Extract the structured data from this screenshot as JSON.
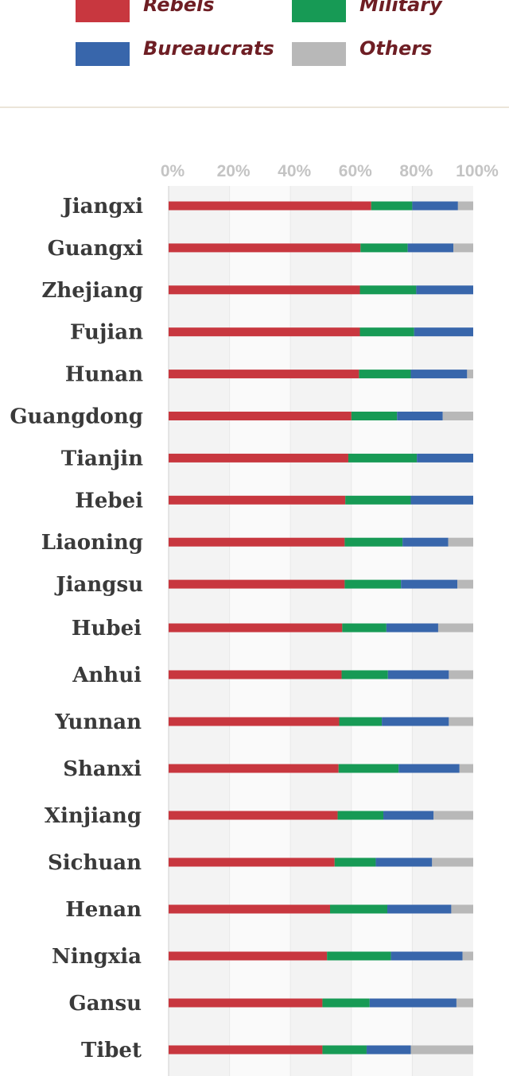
{
  "legend": [
    {
      "label": "Rebels",
      "color": "#c8373f"
    },
    {
      "label": "Military",
      "color": "#179a55"
    },
    {
      "label": "Bureaucrats",
      "color": "#3866ab"
    },
    {
      "label": "Others",
      "color": "#b8b8b8"
    }
  ],
  "chart_data": {
    "type": "bar",
    "orientation": "horizontal",
    "stacked": true,
    "legend_position": "top",
    "grid": true,
    "xlim": [
      0,
      100
    ],
    "x_ticks": [
      "0%",
      "20%",
      "40%",
      "60%",
      "80%",
      "100%"
    ],
    "categories": [
      "Jiangxi",
      "Guangxi",
      "Zhejiang",
      "Fujian",
      "Hunan",
      "Guangdong",
      "Tianjin",
      "Hebei",
      "Liaoning",
      "Jiangsu",
      "Hubei",
      "Anhui",
      "Yunnan",
      "Shanxi",
      "Xinjiang",
      "Sichuan",
      "Henan",
      "Ningxia",
      "Gansu",
      "Tibet"
    ],
    "series": [
      {
        "name": "Rebels",
        "color": "#c8373f",
        "values": [
          66.5,
          63,
          62.8,
          62.8,
          62.5,
          60,
          59,
          58,
          57.8,
          57.8,
          57,
          56.8,
          56,
          55.8,
          55.5,
          54.5,
          53,
          52,
          50.5,
          50.5
        ]
      },
      {
        "name": "Military",
        "color": "#179a55",
        "values": [
          13.5,
          15.5,
          18.5,
          17.8,
          17,
          15,
          22.5,
          21.5,
          19,
          18.5,
          14.5,
          15.2,
          14,
          19.7,
          15,
          13.5,
          18.8,
          21,
          15.5,
          14.5
        ]
      },
      {
        "name": "Bureaucrats",
        "color": "#3866ab",
        "values": [
          15,
          15,
          18.7,
          19.4,
          18.5,
          15,
          18.5,
          20.5,
          15,
          18.5,
          17,
          20,
          22,
          20,
          16.5,
          18.5,
          21,
          23.5,
          28.5,
          14.5
        ]
      },
      {
        "name": "Others",
        "color": "#b8b8b8",
        "values": [
          5,
          6.5,
          0,
          0,
          2,
          10,
          0,
          0,
          8.2,
          5.2,
          11.5,
          8,
          8,
          4.5,
          13,
          13.5,
          7.2,
          3.5,
          5.5,
          20.5
        ]
      }
    ]
  }
}
